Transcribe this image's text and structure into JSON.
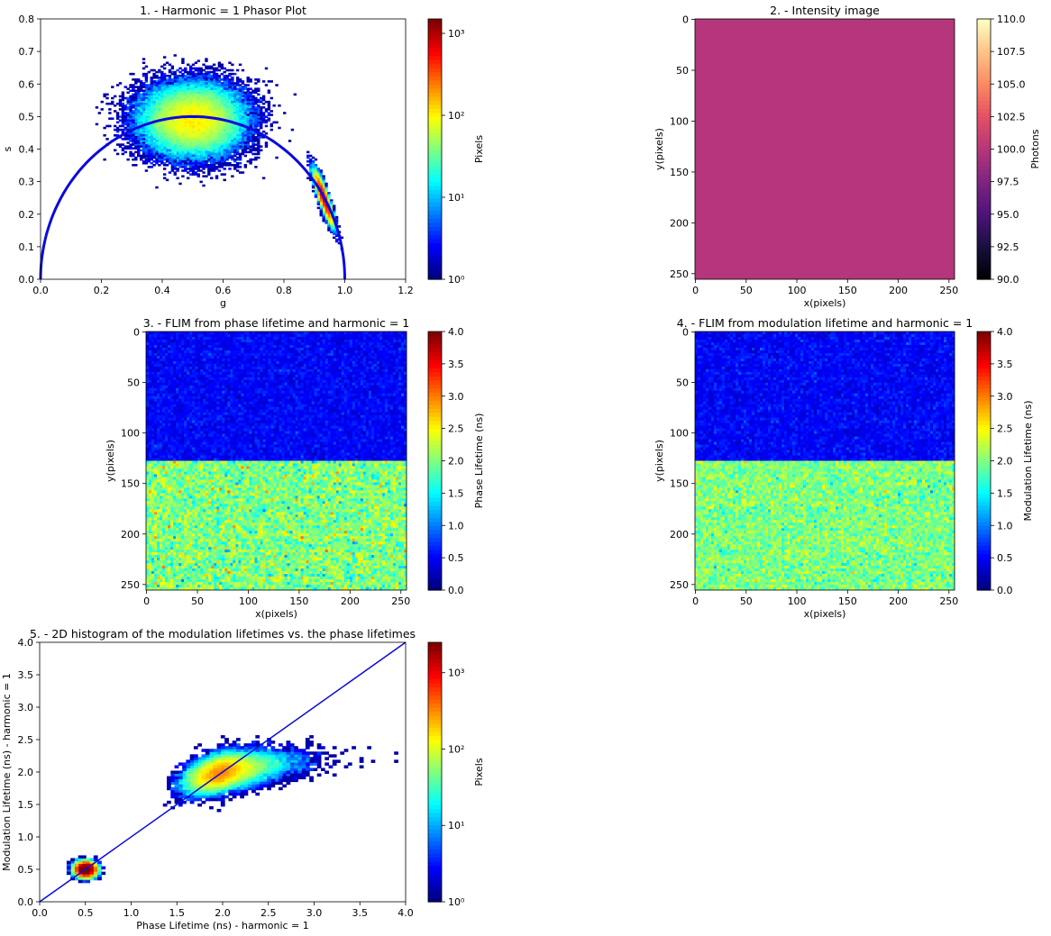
{
  "chart_data": [
    {
      "id": "p1",
      "type": "heatmap",
      "title": "1. - Harmonic = 1 Phasor Plot",
      "xlabel": "g",
      "ylabel": "s",
      "xlim": [
        0,
        1.2
      ],
      "ylim": [
        0,
        0.8
      ],
      "xticks": [
        "0.0",
        "0.2",
        "0.4",
        "0.6",
        "0.8",
        "1.0",
        "1.2"
      ],
      "yticks": [
        "0.0",
        "0.1",
        "0.2",
        "0.3",
        "0.4",
        "0.5",
        "0.6",
        "0.7",
        "0.8"
      ],
      "overlay": "universal semicircle centered (0.5, 0) radius 0.5",
      "clusters": [
        {
          "center_g": 0.5,
          "center_s": 0.49,
          "spread_g": 0.2,
          "spread_s": 0.13
        },
        {
          "center_g": 0.93,
          "center_s": 0.25,
          "spread_g": 0.04,
          "spread_s": 0.09
        }
      ],
      "colorbar": {
        "label": "Pixels",
        "scale": "log",
        "range": [
          1,
          1500
        ],
        "ticks": [
          "10⁰",
          "10¹",
          "10²",
          "10³"
        ],
        "cmap": "jet"
      }
    },
    {
      "id": "p2",
      "type": "heatmap",
      "title": "2. - Intensity image",
      "xlabel": "x(pixels)",
      "ylabel": "y(pixels)",
      "xticks": [
        "0",
        "50",
        "100",
        "150",
        "200",
        "250"
      ],
      "yticks": [
        "0",
        "50",
        "100",
        "150",
        "200",
        "250"
      ],
      "uniform_value": 100,
      "fill_color": "#b5367a",
      "colorbar": {
        "label": "Photons",
        "range": [
          90,
          110
        ],
        "ticks": [
          "90.0",
          "92.5",
          "95.0",
          "97.5",
          "100.0",
          "102.5",
          "105.0",
          "107.5",
          "110.0"
        ],
        "cmap": "magma"
      }
    },
    {
      "id": "p3",
      "type": "heatmap",
      "title": "3. - FLIM from phase lifetime and harmonic = 1",
      "xlabel": "x(pixels)",
      "ylabel": "y(pixels)",
      "xticks": [
        "0",
        "50",
        "100",
        "150",
        "200",
        "250"
      ],
      "yticks": [
        "0",
        "50",
        "100",
        "150",
        "200",
        "250"
      ],
      "regions": [
        {
          "rows": "0-127",
          "mean_lifetime_ns": 0.5
        },
        {
          "rows": "128-255",
          "mean_lifetime_ns": 2.0
        }
      ],
      "colorbar": {
        "label": "Phase Lifetime (ns)",
        "range": [
          0,
          4
        ],
        "ticks": [
          "0.0",
          "0.5",
          "1.0",
          "1.5",
          "2.0",
          "2.5",
          "3.0",
          "3.5",
          "4.0"
        ],
        "cmap": "jet"
      }
    },
    {
      "id": "p4",
      "type": "heatmap",
      "title": "4. - FLIM from modulation lifetime and harmonic = 1",
      "xlabel": "x(pixels)",
      "ylabel": "y(pixels)",
      "xticks": [
        "0",
        "50",
        "100",
        "150",
        "200",
        "250"
      ],
      "yticks": [
        "0",
        "50",
        "100",
        "150",
        "200",
        "250"
      ],
      "regions": [
        {
          "rows": "0-127",
          "mean_lifetime_ns": 0.5
        },
        {
          "rows": "128-255",
          "mean_lifetime_ns": 2.0
        }
      ],
      "colorbar": {
        "label": "Modulation Lifetime (ns)",
        "range": [
          0,
          4
        ],
        "ticks": [
          "0.0",
          "0.5",
          "1.0",
          "1.5",
          "2.0",
          "2.5",
          "3.0",
          "3.5",
          "4.0"
        ],
        "cmap": "jet"
      }
    },
    {
      "id": "p5",
      "type": "heatmap",
      "title": "5. - 2D histogram of the modulation lifetimes vs. the phase lifetimes",
      "xlabel": "Phase Lifetime (ns) - harmonic = 1",
      "ylabel": "Modulation Lifetime (ns) - harmonic = 1",
      "xlim": [
        0,
        4
      ],
      "ylim": [
        0,
        4
      ],
      "xticks": [
        "0.0",
        "0.5",
        "1.0",
        "1.5",
        "2.0",
        "2.5",
        "3.0",
        "3.5",
        "4.0"
      ],
      "yticks": [
        "0.0",
        "0.5",
        "1.0",
        "1.5",
        "2.0",
        "2.5",
        "3.0",
        "3.5",
        "4.0"
      ],
      "overlay": "identity line y = x",
      "clusters": [
        {
          "center_x": 0.5,
          "center_y": 0.5,
          "spread_x": 0.12,
          "spread_y": 0.12
        },
        {
          "center_x": 2.0,
          "center_y": 2.0,
          "spread_x": 0.45,
          "spread_y": 0.35
        }
      ],
      "colorbar": {
        "label": "Pixels",
        "scale": "log",
        "range": [
          1,
          2500
        ],
        "ticks": [
          "10⁰",
          "10¹",
          "10²",
          "10³"
        ],
        "cmap": "jet"
      }
    }
  ]
}
